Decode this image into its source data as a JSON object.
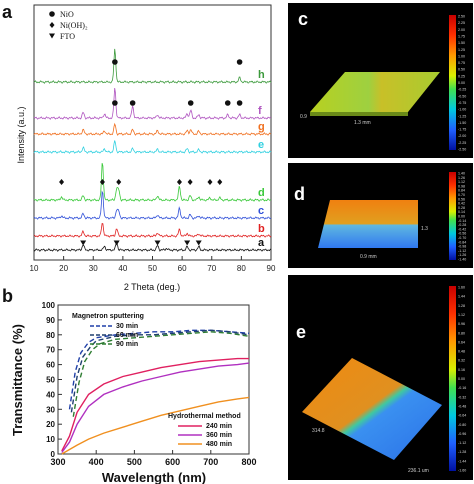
{
  "panels": {
    "a": "a",
    "b": "b",
    "c": "c",
    "d": "d",
    "e": "e"
  },
  "chart_data": [
    {
      "type": "line",
      "panel": "a",
      "title": "",
      "xlabel": "2 Theta (deg.)",
      "ylabel": "Intensity (a.u.)",
      "xlim": [
        10,
        90
      ],
      "x_ticks": [
        "10",
        "20",
        "30",
        "40",
        "50",
        "60",
        "70",
        "80",
        "90"
      ],
      "y_ticks_shown": false,
      "legend": [
        {
          "marker": "●",
          "label": "NiO"
        },
        {
          "marker": "◆",
          "label": "Ni(OH)₂"
        },
        {
          "marker": "▼",
          "label": "FTO"
        }
      ],
      "legend_position": "top-left",
      "series": [
        {
          "name": "h",
          "color": "#3c9a3c",
          "peaks": [
            [
              37.3,
              60
            ],
            [
              79.4,
              8
            ]
          ]
        },
        {
          "name": "f",
          "color": "#b055c0",
          "peaks": [
            [
              26.6,
              10
            ],
            [
              33.8,
              8
            ],
            [
              37.3,
              55
            ],
            [
              43.3,
              22
            ],
            [
              51.7,
              6
            ],
            [
              61.7,
              8
            ],
            [
              62.9,
              14
            ],
            [
              65.6,
              6
            ],
            [
              75.4,
              6
            ],
            [
              79.4,
              6
            ]
          ]
        },
        {
          "name": "g",
          "color": "#f07020",
          "peaks": [
            [
              26.6,
              8
            ],
            [
              33.8,
              6
            ],
            [
              37.3,
              18
            ],
            [
              43.3,
              8
            ],
            [
              51.7,
              6
            ],
            [
              61.7,
              6
            ],
            [
              62.9,
              8
            ],
            [
              65.6,
              5
            ]
          ]
        },
        {
          "name": "e",
          "color": "#30d0e0",
          "peaks": [
            [
              26.6,
              8
            ],
            [
              33.8,
              6
            ],
            [
              37.3,
              20
            ],
            [
              43.3,
              6
            ],
            [
              51.7,
              5
            ],
            [
              61.7,
              6
            ],
            [
              65.6,
              4
            ]
          ]
        },
        {
          "name": "d",
          "color": "#38c838",
          "peaks": [
            [
              19.3,
              6
            ],
            [
              26.6,
              8
            ],
            [
              33.1,
              70
            ],
            [
              37.9,
              20
            ],
            [
              38.6,
              18
            ],
            [
              51.7,
              8
            ],
            [
              59.1,
              25
            ],
            [
              62.7,
              8
            ],
            [
              65.6,
              6
            ],
            [
              69.4,
              4
            ],
            [
              72.7,
              4
            ]
          ]
        },
        {
          "name": "c",
          "color": "#3050d8",
          "peaks": [
            [
              19.3,
              4
            ],
            [
              26.6,
              8
            ],
            [
              33.1,
              50
            ],
            [
              37.9,
              14
            ],
            [
              38.6,
              12
            ],
            [
              51.7,
              6
            ],
            [
              59.1,
              18
            ],
            [
              62.7,
              6
            ],
            [
              65.6,
              4
            ]
          ]
        },
        {
          "name": "b",
          "color": "#e02020",
          "peaks": [
            [
              26.6,
              8
            ],
            [
              33.1,
              25
            ],
            [
              37.9,
              14
            ],
            [
              51.7,
              6
            ],
            [
              59.1,
              12
            ],
            [
              61.7,
              5
            ],
            [
              65.6,
              4
            ]
          ]
        },
        {
          "name": "a",
          "color": "#111111",
          "peaks": [
            [
              26.6,
              10
            ],
            [
              33.8,
              7
            ],
            [
              37.9,
              14
            ],
            [
              51.7,
              8
            ],
            [
              54.7,
              3
            ],
            [
              61.7,
              6
            ],
            [
              65.6,
              6
            ]
          ]
        }
      ],
      "markers": [
        {
          "series": "h",
          "symbol": "●",
          "x": [
            37.3,
            79.4
          ]
        },
        {
          "series": "f",
          "symbol": "●",
          "x": [
            37.3,
            43.3,
            62.9,
            75.4,
            79.4
          ]
        },
        {
          "series": "d",
          "symbol": "◆",
          "x": [
            19.3,
            33.1,
            38.6,
            59.1,
            62.7,
            69.4,
            72.7
          ]
        },
        {
          "series": "a",
          "symbol": "▼",
          "x": [
            26.6,
            37.9,
            51.7,
            61.7,
            65.6
          ]
        }
      ]
    },
    {
      "type": "line",
      "panel": "b",
      "title": "",
      "xlabel": "Wavelength (nm)",
      "ylabel": "Transmittance (%)",
      "xlim": [
        300,
        800
      ],
      "ylim": [
        0,
        100
      ],
      "x_ticks": [
        "300",
        "400",
        "500",
        "600",
        "700",
        "800"
      ],
      "y_ticks": [
        "0",
        "10",
        "20",
        "30",
        "40",
        "50",
        "60",
        "70",
        "80",
        "90",
        "100"
      ],
      "legend_groups": [
        {
          "title": "Magnetron sputtering",
          "position": "top-left",
          "entries": [
            "30 min",
            "60 min",
            "90 min"
          ]
        },
        {
          "title": "Hydrothermal method",
          "position": "bottom-right",
          "entries": [
            "240 min",
            "360 min",
            "480 min"
          ]
        }
      ],
      "series": [
        {
          "name": "30 min",
          "color": "#1f3fa8",
          "dash": true,
          "x": [
            330,
            345,
            360,
            380,
            400,
            450,
            500,
            550,
            600,
            650,
            700,
            750,
            800
          ],
          "y": [
            30,
            55,
            68,
            75,
            78,
            80,
            81,
            82,
            82,
            83,
            83,
            82,
            81
          ]
        },
        {
          "name": "60 min",
          "color": "#1f3f6f",
          "dash": true,
          "x": [
            335,
            350,
            365,
            385,
            400,
            450,
            500,
            550,
            600,
            650,
            700,
            750,
            800
          ],
          "y": [
            28,
            52,
            65,
            72,
            76,
            79,
            80,
            80,
            81,
            82,
            83,
            82,
            80
          ]
        },
        {
          "name": "90 min",
          "color": "#2e7d32",
          "dash": true,
          "x": [
            340,
            355,
            370,
            390,
            410,
            450,
            500,
            550,
            600,
            650,
            700,
            750,
            800
          ],
          "y": [
            25,
            48,
            62,
            70,
            74,
            77,
            78,
            79,
            80,
            81,
            82,
            81,
            79
          ]
        },
        {
          "name": "240 min",
          "color": "#e02060",
          "dash": false,
          "x": [
            310,
            330,
            350,
            380,
            420,
            470,
            520,
            570,
            620,
            670,
            720,
            770,
            800
          ],
          "y": [
            2,
            12,
            28,
            40,
            47,
            52,
            55,
            58,
            60,
            62,
            63,
            64,
            64
          ]
        },
        {
          "name": "360 min",
          "color": "#b030c0",
          "dash": false,
          "x": [
            310,
            330,
            350,
            380,
            420,
            470,
            520,
            570,
            620,
            670,
            720,
            770,
            800
          ],
          "y": [
            1,
            8,
            20,
            32,
            40,
            45,
            49,
            52,
            55,
            57,
            59,
            60,
            61
          ]
        },
        {
          "name": "480 min",
          "color": "#f09020",
          "dash": false,
          "x": [
            310,
            330,
            350,
            380,
            420,
            470,
            520,
            570,
            620,
            670,
            720,
            770,
            800
          ],
          "y": [
            0,
            3,
            6,
            10,
            14,
            18,
            22,
            26,
            29,
            32,
            35,
            37,
            38
          ]
        }
      ]
    }
  ],
  "afm": [
    {
      "panel": "c",
      "label_x": "1.3 mm",
      "label_y": "0.9",
      "colorbar": [
        "2.50",
        "2.25",
        "2.00",
        "1.75",
        "1.50",
        "1.25",
        "1.00",
        "0.75",
        "0.50",
        "0.25",
        "0.00",
        "-0.25",
        "-0.50",
        "-0.75",
        "-1.00",
        "-1.25",
        "-1.50",
        "-1.75",
        "-2.00",
        "-2.25",
        "-2.50"
      ]
    },
    {
      "panel": "d",
      "label_x": "0.9 mm",
      "label_y": "1.3",
      "colorbar": [
        "1.40",
        "1.26",
        "1.12",
        "0.98",
        "0.84",
        "0.70",
        "0.56",
        "0.42",
        "0.28",
        "0.14",
        "0.00",
        "-0.14",
        "-0.28",
        "-0.42",
        "-0.56",
        "-0.70",
        "-0.84",
        "-0.98",
        "-1.12",
        "-1.26",
        "-1.40"
      ]
    },
    {
      "panel": "e",
      "label_x": "236.1 um",
      "label_y": "314.8",
      "colorbar": [
        "1.60",
        "1.44",
        "1.28",
        "1.12",
        "0.96",
        "0.80",
        "0.64",
        "0.48",
        "0.32",
        "0.16",
        "0.00",
        "-0.16",
        "-0.32",
        "-0.48",
        "-0.64",
        "-0.80",
        "-0.96",
        "-1.12",
        "-1.28",
        "-1.44",
        "-1.60"
      ]
    }
  ]
}
